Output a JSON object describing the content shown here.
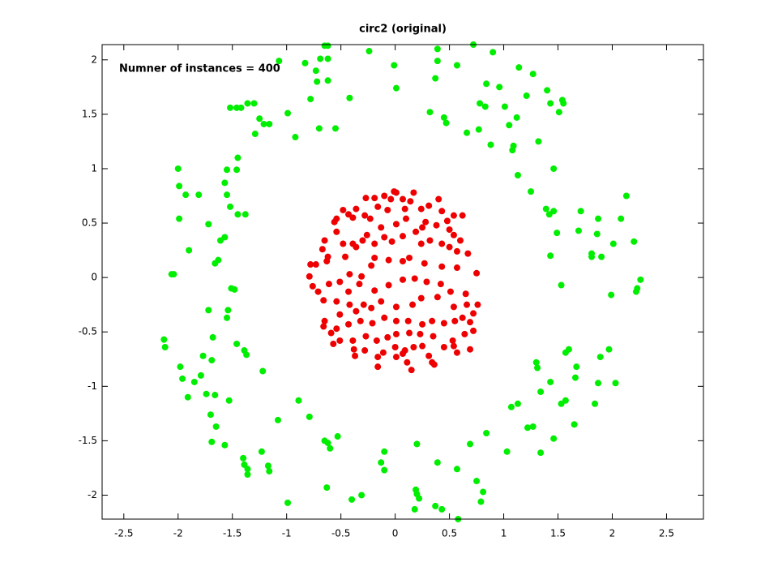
{
  "chart_data": {
    "type": "scatter",
    "title": "circ2 (original)",
    "annotation": "Numner of instances = 400",
    "xlim": [
      -2.7,
      2.84
    ],
    "ylim": [
      -2.22,
      2.14
    ],
    "xticks": [
      -2.5,
      -2,
      -1.5,
      -1,
      -0.5,
      0,
      0.5,
      1,
      1.5,
      2,
      2.5
    ],
    "yticks": [
      -2,
      -1.5,
      -1,
      -0.5,
      0,
      0.5,
      1,
      1.5,
      2
    ],
    "series": [
      {
        "color": "#00ee00",
        "x": [
          -0.65,
          -0.62,
          -0.24,
          0.39,
          0.72,
          0.9,
          -1.07,
          -0.83,
          -0.69,
          -0.62,
          -0.01,
          0.39,
          0.57,
          1.14,
          1.27,
          -0.73,
          -0.72,
          -0.62,
          -0.42,
          0.01,
          0.37,
          0.84,
          0.96,
          1.21,
          1.4,
          1.54,
          1.55,
          -1.36,
          -1.42,
          -1.52,
          -1.46,
          -1.3,
          -0.99,
          -0.78,
          0.32,
          0.45,
          0.78,
          0.83,
          1.01,
          1.12,
          1.43,
          1.51,
          -1.25,
          -1.21,
          -1.16,
          -1.29,
          -0.92,
          -0.7,
          -0.55,
          0.47,
          0.66,
          0.77,
          1.05,
          1.32,
          1.09,
          0.88,
          1.08,
          -1.45,
          -1.55,
          -1.57,
          -1.46,
          -2.0,
          -1.99,
          -1.93,
          -1.81,
          1.46,
          1.13,
          1.25,
          1.39,
          1.42,
          1.46,
          1.71,
          1.87,
          2.13,
          2.08,
          -1.55,
          -1.52,
          -1.45,
          -1.38,
          -1.99,
          -1.72,
          -1.61,
          -1.66,
          -1.63,
          -1.57,
          -1.9,
          -2.04,
          -2.06,
          -1.51,
          -1.48,
          1.49,
          1.69,
          1.86,
          2.01,
          2.2,
          1.81,
          1.81,
          1.43,
          1.9,
          2.26,
          2.23,
          2.22,
          1.99,
          1.53,
          -1.72,
          -1.54,
          -1.55,
          -2.13,
          -2.12,
          -1.68,
          -1.46,
          -1.39,
          -1.37,
          -1.77,
          -1.69,
          -1.98,
          -1.79,
          -1.85,
          -1.96,
          -1.22,
          1.3,
          1.31,
          1.6,
          1.57,
          1.97,
          1.89,
          1.67,
          1.66,
          1.43,
          1.34,
          1.57,
          1.53,
          1.87,
          2.03,
          -1.91,
          -1.74,
          -1.66,
          -1.53,
          -1.7,
          -0.89,
          -0.79,
          1.07,
          1.13,
          1.84,
          -1.08,
          -1.65,
          -1.69,
          -1.57,
          0.84,
          1.22,
          1.27,
          1.46,
          1.65,
          -0.53,
          -0.65,
          -0.62,
          0.2,
          0.69,
          -1.23,
          -1.4,
          -1.39,
          -1.36,
          -1.17,
          -1.16,
          -0.6,
          -0.1,
          -0.13,
          -0.1,
          0.57,
          1.03,
          1.34,
          -1.36,
          -0.63,
          -0.4,
          -0.31,
          0.39,
          0.75,
          0.81,
          0.19,
          0.2,
          0.22,
          0.37,
          0.43,
          0.79,
          -0.99,
          0.18,
          0.58
        ],
        "values": [
          2.13,
          2.13,
          2.08,
          2.1,
          2.14,
          2.07,
          1.99,
          1.97,
          2.01,
          2.01,
          1.95,
          1.99,
          1.95,
          1.93,
          1.87,
          1.9,
          1.8,
          1.81,
          1.65,
          1.74,
          1.83,
          1.78,
          1.75,
          1.67,
          1.72,
          1.63,
          1.6,
          1.6,
          1.56,
          1.56,
          1.56,
          1.6,
          1.51,
          1.64,
          1.52,
          1.47,
          1.6,
          1.57,
          1.57,
          1.47,
          1.6,
          1.52,
          1.46,
          1.41,
          1.41,
          1.32,
          1.29,
          1.37,
          1.37,
          1.42,
          1.33,
          1.36,
          1.4,
          1.25,
          1.21,
          1.22,
          1.17,
          1.1,
          0.99,
          0.87,
          0.99,
          1.0,
          0.84,
          0.76,
          0.76,
          1.0,
          0.94,
          0.79,
          0.63,
          0.58,
          0.61,
          0.61,
          0.54,
          0.75,
          0.54,
          0.76,
          0.65,
          0.58,
          0.58,
          0.54,
          0.49,
          0.34,
          0.13,
          0.16,
          0.37,
          0.25,
          0.03,
          0.03,
          -0.1,
          -0.11,
          0.41,
          0.43,
          0.4,
          0.31,
          0.33,
          0.22,
          0.19,
          0.2,
          0.19,
          -0.02,
          -0.1,
          -0.13,
          -0.16,
          -0.07,
          -0.3,
          -0.3,
          -0.37,
          -0.57,
          -0.64,
          -0.55,
          -0.61,
          -0.67,
          -0.71,
          -0.72,
          -0.76,
          -0.82,
          -0.9,
          -0.96,
          -0.93,
          -0.86,
          -0.78,
          -0.83,
          -0.66,
          -0.69,
          -0.66,
          -0.73,
          -0.82,
          -0.92,
          -0.96,
          -1.05,
          -1.13,
          -1.16,
          -0.97,
          -0.97,
          -1.1,
          -1.07,
          -1.08,
          -1.13,
          -1.26,
          -1.13,
          -1.28,
          -1.19,
          -1.16,
          -1.16,
          -1.31,
          -1.37,
          -1.51,
          -1.54,
          -1.43,
          -1.38,
          -1.37,
          -1.48,
          -1.35,
          -1.46,
          -1.5,
          -1.52,
          -1.53,
          -1.53,
          -1.6,
          -1.66,
          -1.72,
          -1.76,
          -1.73,
          -1.78,
          -1.57,
          -1.6,
          -1.7,
          -1.77,
          -1.76,
          -1.6,
          -1.61,
          -1.81,
          -1.93,
          -2.04,
          -2.0,
          -1.7,
          -1.87,
          -1.97,
          -1.95,
          -1.99,
          -2.03,
          -2.1,
          -2.13,
          -2.06,
          -2.07,
          -2.13,
          -2.22
        ]
      },
      {
        "color": "#ee0000",
        "x": [
          -0.01,
          0.01,
          -0.1,
          -0.04,
          0.07,
          0.17,
          0.14,
          -0.27,
          -0.19,
          -0.16,
          -0.36,
          -0.43,
          -0.48,
          -0.39,
          -0.54,
          -0.56,
          -0.28,
          -0.23,
          -0.07,
          0.09,
          0.24,
          0.4,
          0.31,
          0.43,
          0.54,
          0.62,
          0.48,
          0.28,
          0.25,
          0.38,
          0.5,
          0.54,
          0.6,
          0.1,
          0.01,
          -0.13,
          -0.26,
          -0.3,
          -0.39,
          -0.48,
          -0.54,
          -0.65,
          -0.67,
          -0.62,
          -0.78,
          -0.79,
          -0.73,
          -0.63,
          -0.46,
          -0.36,
          -0.19,
          -0.1,
          -0.03,
          0.07,
          0.19,
          0.32,
          0.24,
          0.43,
          0.5,
          0.57,
          0.67,
          0.75,
          0.57,
          0.43,
          0.27,
          0.13,
          0.07,
          -0.06,
          -0.19,
          -0.22,
          -0.31,
          -0.42,
          -0.51,
          -0.61,
          -0.71,
          -0.76,
          -0.66,
          -0.54,
          -0.43,
          -0.33,
          -0.19,
          -0.06,
          0.07,
          0.18,
          0.29,
          0.42,
          0.51,
          0.65,
          0.76,
          0.66,
          0.72,
          0.62,
          0.54,
          0.39,
          0.24,
          0.16,
          0.01,
          -0.13,
          -0.22,
          -0.29,
          -0.42,
          -0.36,
          -0.51,
          -0.65,
          -0.59,
          -0.66,
          -0.54,
          -0.43,
          -0.32,
          -0.21,
          -0.1,
          0.01,
          0.12,
          0.25,
          0.34,
          0.45,
          0.55,
          0.69,
          0.72,
          0.64,
          0.53,
          0.45,
          0.35,
          0.23,
          0.13,
          0.01,
          -0.07,
          -0.17,
          -0.27,
          -0.39,
          -0.51,
          -0.57,
          -0.37,
          -0.28,
          -0.16,
          -0.11,
          0.0,
          0.09,
          0.11,
          0.01,
          0.07,
          0.15,
          0.17,
          0.25,
          0.31,
          0.34,
          0.36,
          0.54,
          0.57,
          0.69,
          -0.16,
          -0.38
        ],
        "values": [
          0.79,
          0.78,
          0.75,
          0.72,
          0.72,
          0.78,
          0.7,
          0.73,
          0.73,
          0.65,
          0.63,
          0.58,
          0.62,
          0.55,
          0.54,
          0.51,
          0.57,
          0.54,
          0.62,
          0.63,
          0.63,
          0.72,
          0.66,
          0.61,
          0.57,
          0.57,
          0.52,
          0.51,
          0.46,
          0.48,
          0.44,
          0.39,
          0.34,
          0.54,
          0.49,
          0.46,
          0.39,
          0.34,
          0.31,
          0.31,
          0.42,
          0.34,
          0.26,
          0.19,
          0.12,
          0.01,
          0.12,
          0.15,
          0.19,
          0.28,
          0.31,
          0.37,
          0.33,
          0.38,
          0.42,
          0.34,
          0.31,
          0.31,
          0.28,
          0.24,
          0.22,
          0.04,
          0.09,
          0.1,
          0.13,
          0.18,
          0.15,
          0.16,
          0.18,
          0.11,
          0.01,
          0.03,
          -0.04,
          -0.06,
          -0.13,
          -0.08,
          -0.21,
          -0.22,
          -0.13,
          -0.06,
          -0.12,
          -0.07,
          -0.02,
          -0.01,
          -0.04,
          -0.06,
          -0.13,
          -0.15,
          -0.25,
          -0.25,
          -0.33,
          -0.37,
          -0.27,
          -0.18,
          -0.19,
          -0.25,
          -0.27,
          -0.22,
          -0.28,
          -0.25,
          -0.25,
          -0.31,
          -0.34,
          -0.4,
          -0.51,
          -0.45,
          -0.47,
          -0.43,
          -0.4,
          -0.42,
          -0.37,
          -0.4,
          -0.4,
          -0.43,
          -0.4,
          -0.42,
          -0.4,
          -0.41,
          -0.49,
          -0.52,
          -0.58,
          -0.64,
          -0.54,
          -0.52,
          -0.51,
          -0.52,
          -0.55,
          -0.58,
          -0.54,
          -0.58,
          -0.58,
          -0.61,
          -0.72,
          -0.67,
          -0.73,
          -0.69,
          -0.64,
          -0.67,
          -0.78,
          -0.73,
          -0.7,
          -0.85,
          -0.64,
          -0.63,
          -0.72,
          -0.78,
          -0.8,
          -0.63,
          -0.69,
          -0.66,
          -0.82,
          -0.66
        ]
      }
    ]
  }
}
